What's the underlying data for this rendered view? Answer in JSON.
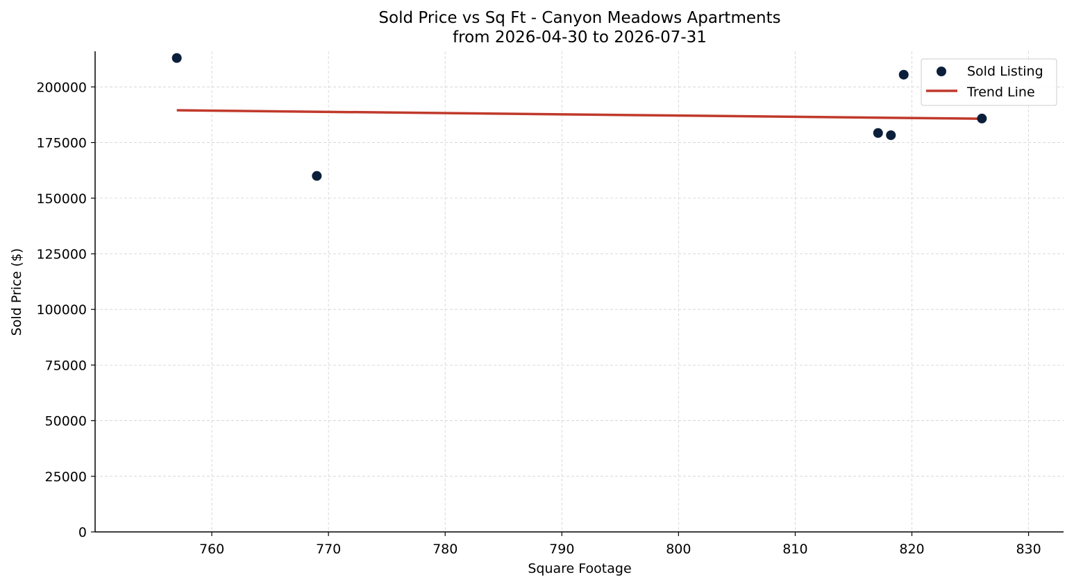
{
  "chart_data": {
    "type": "scatter",
    "title": "Sold Price vs Sq Ft - Canyon Meadows Apartments",
    "subtitle": "from 2026-04-30 to 2026-07-31",
    "xlabel": "Square Footage",
    "ylabel": "Sold Price ($)",
    "xlim": [
      750,
      833
    ],
    "ylim": [
      0,
      216000
    ],
    "xticks": [
      760,
      770,
      780,
      790,
      800,
      810,
      820,
      830
    ],
    "yticks": [
      0,
      25000,
      50000,
      75000,
      100000,
      125000,
      150000,
      175000,
      200000
    ],
    "grid": true,
    "legend_position": "top-right",
    "series": [
      {
        "name": "Sold Listing",
        "kind": "scatter",
        "color": "#0b1f3a",
        "points": [
          {
            "x": 757,
            "y": 213000
          },
          {
            "x": 769,
            "y": 160000
          },
          {
            "x": 817.1,
            "y": 179300
          },
          {
            "x": 818.2,
            "y": 178300
          },
          {
            "x": 819.3,
            "y": 205500
          },
          {
            "x": 826,
            "y": 185800
          }
        ]
      },
      {
        "name": "Trend Line",
        "kind": "line",
        "color": "#c0392b",
        "points": [
          {
            "x": 757,
            "y": 189500
          },
          {
            "x": 826,
            "y": 185700
          }
        ]
      }
    ]
  }
}
